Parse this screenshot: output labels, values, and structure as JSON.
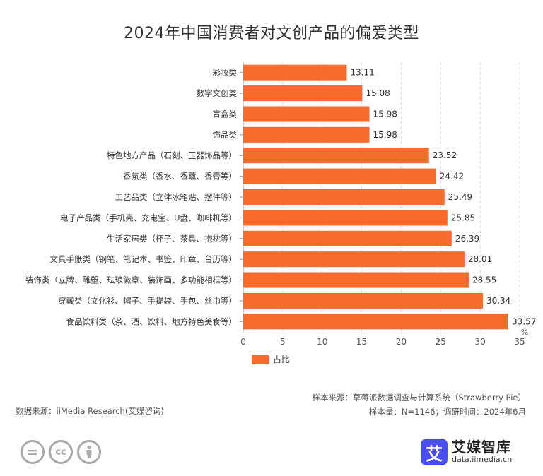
{
  "chart_data": {
    "type": "bar",
    "orientation": "horizontal",
    "title": "2024年中国消费者对文创产品的偏爱类型",
    "categories": [
      "彩妆类",
      "数字文创类",
      "盲盒类",
      "饰品类",
      "特色地方产品（石刻、玉器饰品等）",
      "香氛类（香水、香薰、香膏等）",
      "工艺品类（立体冰箱贴、摆件等）",
      "电子产品类（手机壳、充电宝、U盘、咖啡机等）",
      "生活家居类（杯子、茶具、抱枕等）",
      "文具手账类（钢笔、笔记本、书签、印章、台历等）",
      "装饰类（立牌、雕塑、珐琅徽章、装饰画、多功能相框等）",
      "穿戴类（文化衫、帽子、手提袋、手包、丝巾等）",
      "食品饮料类（茶、酒、饮料、地方特色美食等）"
    ],
    "series": [
      {
        "name": "占比",
        "values": [
          13.11,
          15.08,
          15.98,
          15.98,
          23.52,
          24.42,
          25.49,
          25.85,
          26.39,
          28.01,
          28.55,
          30.34,
          33.57
        ],
        "data_labels": [
          "13.11",
          "15.08",
          "15.98",
          "15.98",
          "23.52",
          "24.42",
          "25.49",
          "25.85",
          "26.39",
          "28.01",
          "28.55",
          "30.34",
          "33.57"
        ]
      }
    ],
    "xlim": [
      0,
      35
    ],
    "xticks": [
      "0",
      "5",
      "10",
      "15",
      "20",
      "25",
      "30",
      "35"
    ],
    "unit": "%",
    "grid": "vertical dashed",
    "legend_position": "bottom",
    "bar_color": "#F96B2C"
  },
  "footer": {
    "sample_source": "样本来源：草莓派数据调查与计算系统（Strawberry Pie）",
    "sample_info": "样本量：N=1146；调研时间：2024年6月",
    "data_source": "数据来源：iiMedia Research(艾媒咨询)"
  },
  "brand": {
    "logo_char": "艾",
    "name": "艾媒智库",
    "url": "data.iimedia.cn"
  },
  "license": {
    "icons": [
      "equals-icon",
      "cc-icon",
      "person-icon"
    ],
    "icon_texts": [
      "=",
      "cc"
    ]
  }
}
